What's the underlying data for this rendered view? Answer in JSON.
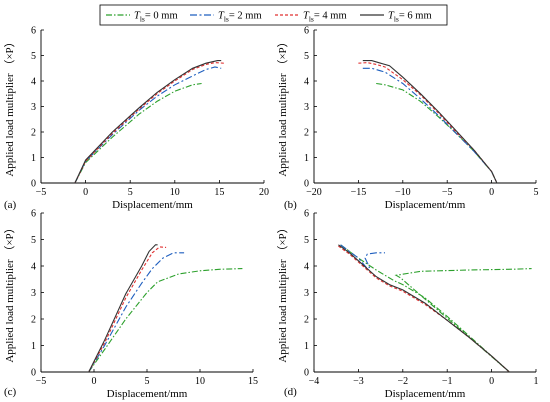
{
  "chart_data": {
    "type": "line",
    "legend": {
      "placement": "top-center",
      "entries": [
        {
          "series": 0,
          "text_main": "T",
          "text_sub": "ls",
          "text_rest": "= 0 mm"
        },
        {
          "series": 1,
          "text_main": "T",
          "text_sub": "ls",
          "text_rest": "= 2 mm"
        },
        {
          "series": 2,
          "text_main": "T",
          "text_sub": "ls",
          "text_rest": "= 4 mm"
        },
        {
          "series": 3,
          "text_main": "T",
          "text_sub": "ls",
          "text_rest": "= 6 mm"
        }
      ]
    },
    "series_styles": [
      {
        "color": "#2ca02c",
        "dash": "6,2,1.5,2"
      },
      {
        "color": "#1f5fbf",
        "dash": "7,2.5,2,2.5"
      },
      {
        "color": "#e03030",
        "dash": "3,2"
      },
      {
        "color": "#333333",
        "dash": ""
      }
    ],
    "panels": [
      {
        "letter": "(a)",
        "xlabel": "Displacement/mm",
        "ylabel": "Applied load multiplier （×P）",
        "xlim": [
          -5,
          20
        ],
        "ylim": [
          0,
          6
        ],
        "xticks": [
          -5,
          0,
          5,
          10,
          15,
          20
        ],
        "yticks": [
          0,
          1,
          2,
          3,
          4,
          5,
          6
        ],
        "series": [
          {
            "x": [
              -1.2,
              0,
              3,
              6,
              8,
              10,
              12,
              13
            ],
            "y": [
              0,
              0.8,
              1.8,
              2.7,
              3.2,
              3.6,
              3.85,
              3.9
            ]
          },
          {
            "x": [
              -1.2,
              0,
              3,
              6,
              8,
              10,
              12,
              13.5,
              14.5,
              15.2
            ],
            "y": [
              0,
              0.85,
              1.9,
              2.85,
              3.4,
              3.85,
              4.2,
              4.45,
              4.55,
              4.5
            ]
          },
          {
            "x": [
              -1.2,
              0,
              3,
              6,
              8,
              10,
              12,
              13.5,
              14.5,
              15.5
            ],
            "y": [
              0,
              0.85,
              1.95,
              2.9,
              3.5,
              4.0,
              4.45,
              4.65,
              4.72,
              4.7
            ]
          },
          {
            "x": [
              -1.2,
              0,
              3,
              6,
              8,
              10,
              12,
              13.5,
              14.8,
              15.2
            ],
            "y": [
              0,
              0.9,
              2.0,
              2.95,
              3.55,
              4.05,
              4.5,
              4.7,
              4.8,
              4.8
            ]
          }
        ]
      },
      {
        "letter": "(b)",
        "xlabel": "Displacement/mm",
        "ylabel": "Applied load multiplier （×P）",
        "xlim": [
          -20,
          5
        ],
        "ylim": [
          0,
          6
        ],
        "xticks": [
          -20,
          -15,
          -10,
          -5,
          0,
          5
        ],
        "yticks": [
          0,
          1,
          2,
          3,
          4,
          5,
          6
        ],
        "series": [
          {
            "x": [
              -13,
              -12,
              -10,
              -8,
              -6,
              -4,
              -2,
              0,
              0.6
            ],
            "y": [
              3.9,
              3.85,
              3.65,
              3.2,
              2.6,
              1.95,
              1.25,
              0.45,
              0
            ]
          },
          {
            "x": [
              -14.5,
              -13.5,
              -12,
              -10,
              -8,
              -6,
              -4,
              -2,
              0,
              0.6
            ],
            "y": [
              4.5,
              4.5,
              4.35,
              3.9,
              3.3,
              2.65,
              1.95,
              1.25,
              0.45,
              0
            ]
          },
          {
            "x": [
              -15,
              -14,
              -13,
              -12,
              -10,
              -8,
              -6,
              -4,
              -2,
              0,
              0.6
            ],
            "y": [
              4.7,
              4.72,
              4.65,
              4.55,
              4.05,
              3.45,
              2.75,
              2.0,
              1.3,
              0.45,
              0
            ]
          },
          {
            "x": [
              -14.5,
              -13.5,
              -12.5,
              -11.5,
              -10,
              -8,
              -6,
              -4,
              -2,
              0,
              0.6
            ],
            "y": [
              4.8,
              4.8,
              4.7,
              4.6,
              4.15,
              3.5,
              2.8,
              2.05,
              1.3,
              0.45,
              0
            ]
          }
        ]
      },
      {
        "letter": "(c)",
        "xlabel": "Displacement/mm",
        "ylabel": "Applied load multiplier （×P）",
        "xlim": [
          -5,
          15
        ],
        "ylim": [
          0,
          6
        ],
        "xticks": [
          -5,
          0,
          5,
          10,
          15
        ],
        "yticks": [
          0,
          1,
          2,
          3,
          4,
          5,
          6
        ],
        "series": [
          {
            "x": [
              -0.5,
              1,
              3,
              5,
              6,
              8,
              10,
              12,
              14
            ],
            "y": [
              0,
              0.85,
              2.0,
              3.0,
              3.4,
              3.7,
              3.82,
              3.88,
              3.9
            ]
          },
          {
            "x": [
              -0.5,
              1,
              3,
              4.5,
              5.5,
              6.5,
              7.5,
              8.5
            ],
            "y": [
              0,
              1.0,
              2.45,
              3.35,
              3.9,
              4.3,
              4.5,
              4.5
            ]
          },
          {
            "x": [
              -0.5,
              1,
              3,
              4.5,
              5.5,
              6.2,
              6.8
            ],
            "y": [
              0,
              1.1,
              2.8,
              3.85,
              4.5,
              4.72,
              4.7
            ]
          },
          {
            "x": [
              -0.5,
              1,
              3,
              4.5,
              5.2,
              5.8,
              6.0
            ],
            "y": [
              0,
              1.2,
              2.95,
              4.0,
              4.55,
              4.8,
              4.8
            ]
          }
        ]
      },
      {
        "letter": "(d)",
        "xlabel": "Displacement/mm",
        "ylabel": "Applied load multiplier （×P）",
        "xlim": [
          -4,
          1
        ],
        "ylim": [
          0,
          6
        ],
        "xticks": [
          -4,
          -3,
          -2,
          -1,
          0,
          1
        ],
        "yticks": [
          0,
          1,
          2,
          3,
          4,
          5,
          6
        ],
        "series": [
          {
            "x": [
              -3.4,
              -3.0,
              -2.6,
              -2.2,
              -2.0,
              -1.5,
              -1.0,
              -0.5,
              0,
              0.4,
              -2.05,
              -2.15,
              -1.6,
              -0.5,
              0.5,
              0.9
            ],
            "y": [
              4.8,
              4.3,
              3.85,
              3.45,
              3.3,
              2.8,
              2.1,
              1.35,
              0.6,
              0,
              3.55,
              3.65,
              3.8,
              3.85,
              3.88,
              3.9
            ]
          },
          {
            "x": [
              -3.4,
              -3.0,
              -2.8,
              -2.75,
              -2.85,
              -2.8,
              -2.6,
              -2.4
            ],
            "y": [
              4.8,
              4.3,
              3.9,
              3.95,
              4.3,
              4.45,
              4.5,
              4.5
            ]
          },
          {
            "x": [
              -3.45,
              -3.2,
              -2.9,
              -2.6,
              -2.3,
              -2.0,
              -1.5,
              -1.0,
              -0.5,
              0,
              0.4
            ],
            "y": [
              4.75,
              4.45,
              4.0,
              3.55,
              3.25,
              3.05,
              2.55,
              1.95,
              1.3,
              0.6,
              0
            ]
          },
          {
            "x": [
              -3.45,
              -3.2,
              -2.9,
              -2.6,
              -2.3,
              -2.0,
              -1.5,
              -1.0,
              -0.5,
              0,
              0.4
            ],
            "y": [
              4.8,
              4.5,
              4.05,
              3.6,
              3.3,
              3.1,
              2.6,
              1.95,
              1.3,
              0.6,
              0
            ]
          }
        ]
      }
    ]
  }
}
